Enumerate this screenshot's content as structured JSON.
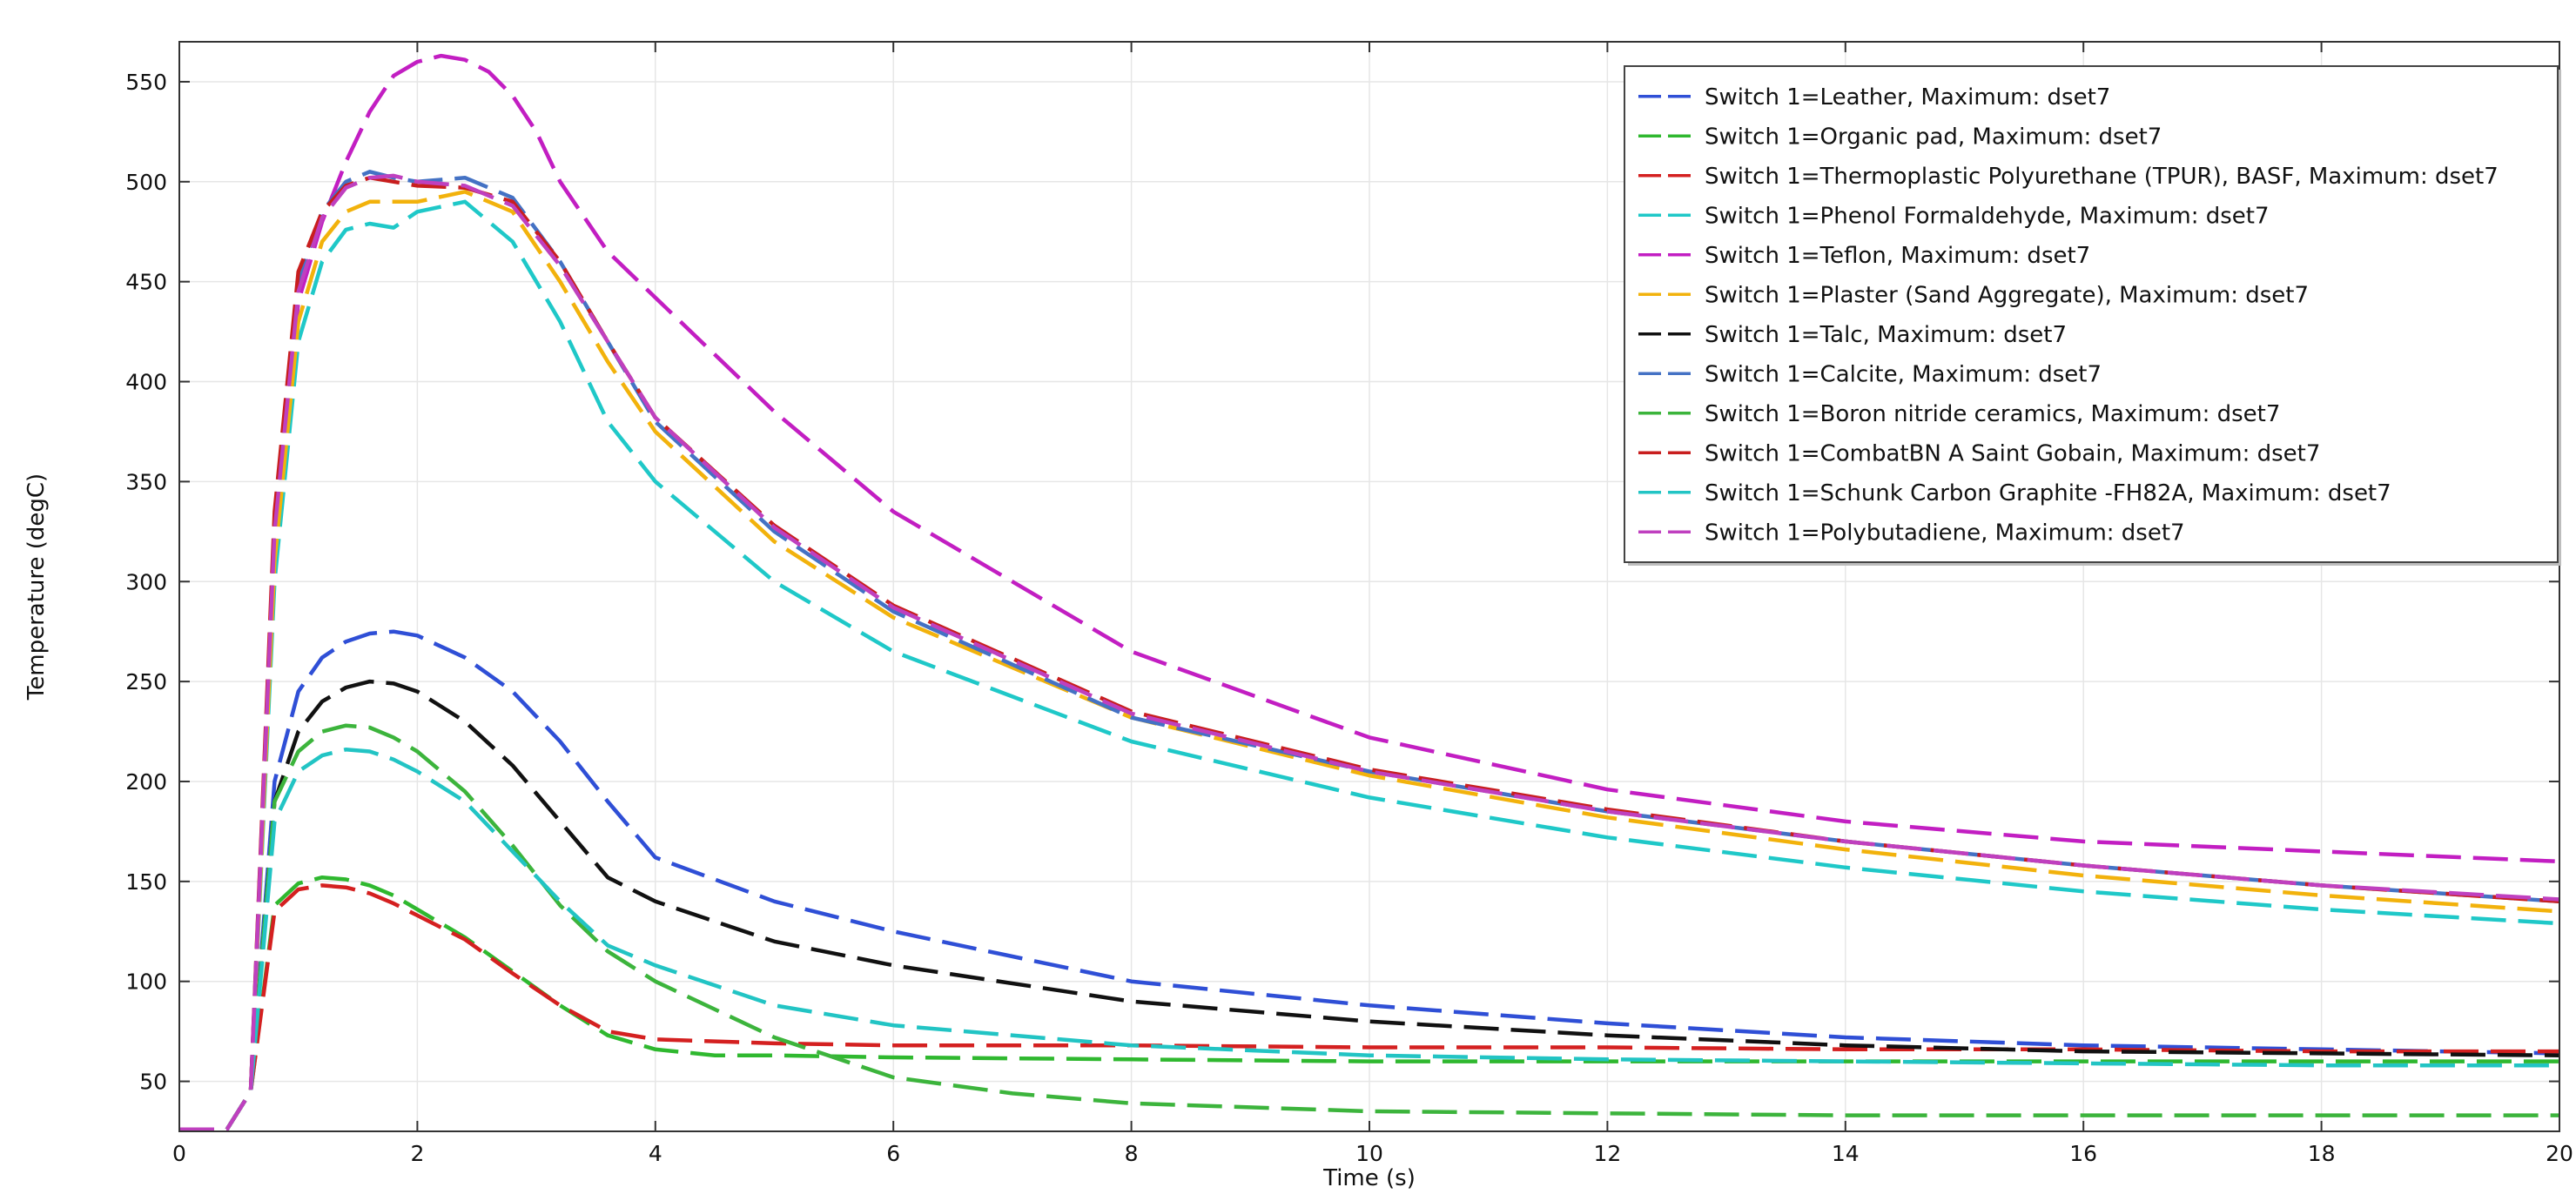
{
  "chart_data": {
    "type": "line",
    "title": "",
    "xlabel": "Time (s)",
    "ylabel": "Temperature (degC)",
    "xlim": [
      0,
      20
    ],
    "ylim": [
      25,
      570
    ],
    "x_ticks": [
      0,
      2,
      4,
      6,
      8,
      10,
      12,
      14,
      16,
      18,
      20
    ],
    "y_ticks": [
      50,
      100,
      150,
      200,
      250,
      300,
      350,
      400,
      450,
      500,
      550
    ],
    "grid": true,
    "line_style": "dashed",
    "legend_position": "top-right",
    "series": [
      {
        "name": "Switch 1=Leather, Maximum: dset7",
        "color": "#2f4fd6",
        "x": [
          0,
          0.4,
          0.6,
          0.8,
          1,
          1.2,
          1.4,
          1.6,
          1.8,
          2,
          2.4,
          2.8,
          3.2,
          3.6,
          4,
          5,
          6,
          8,
          10,
          12,
          14,
          16,
          18,
          20
        ],
        "y": [
          26,
          26,
          45,
          200,
          245,
          262,
          270,
          274,
          275,
          273,
          262,
          245,
          220,
          190,
          162,
          140,
          125,
          100,
          88,
          79,
          72,
          68,
          66,
          64
        ]
      },
      {
        "name": "Switch 1=Organic pad, Maximum: dset7",
        "color": "#2fb82f",
        "x": [
          0,
          0.4,
          0.6,
          0.8,
          1,
          1.2,
          1.4,
          1.6,
          1.8,
          2,
          2.4,
          2.8,
          3.2,
          3.6,
          4,
          4.5,
          5,
          6,
          8,
          10,
          12,
          14,
          16,
          18,
          20
        ],
        "y": [
          26,
          26,
          45,
          138,
          149,
          152,
          151,
          148,
          143,
          136,
          122,
          105,
          88,
          73,
          66,
          63,
          63,
          62,
          61,
          60,
          60,
          60,
          60,
          60,
          60
        ]
      },
      {
        "name": "Switch 1=Thermoplastic Polyurethane (TPUR), BASF, Maximum: dset7",
        "color": "#d42020",
        "x": [
          0,
          0.4,
          0.6,
          0.8,
          1,
          1.2,
          1.4,
          1.6,
          1.8,
          2,
          2.4,
          2.8,
          3.2,
          3.6,
          4,
          4.5,
          5,
          6,
          8,
          10,
          12,
          14,
          16,
          18,
          20
        ],
        "y": [
          26,
          26,
          45,
          135,
          146,
          148,
          147,
          144,
          139,
          133,
          121,
          104,
          88,
          75,
          71,
          70,
          69,
          68,
          68,
          67,
          67,
          66,
          66,
          65,
          65
        ]
      },
      {
        "name": "Switch 1=Phenol Formaldehyde, Maximum: dset7",
        "color": "#1fc8c8",
        "x": [
          0,
          0.4,
          0.6,
          0.8,
          1,
          1.2,
          1.4,
          1.6,
          1.8,
          2,
          2.4,
          2.8,
          3.2,
          3.6,
          4,
          5,
          6,
          8,
          10,
          12,
          14,
          16,
          18,
          20
        ],
        "y": [
          26,
          26,
          45,
          300,
          420,
          460,
          476,
          479,
          477,
          485,
          490,
          470,
          430,
          380,
          350,
          300,
          265,
          220,
          192,
          172,
          157,
          145,
          136,
          129
        ]
      },
      {
        "name": "Switch 1=Teflon, Maximum: dset7",
        "color": "#c21ec2",
        "x": [
          0,
          0.4,
          0.6,
          0.8,
          1,
          1.2,
          1.4,
          1.6,
          1.8,
          2,
          2.2,
          2.4,
          2.6,
          2.8,
          3,
          3.2,
          3.6,
          4,
          5,
          6,
          8,
          10,
          12,
          14,
          16,
          18,
          20
        ],
        "y": [
          26,
          26,
          45,
          320,
          440,
          480,
          510,
          535,
          553,
          560,
          563,
          561,
          555,
          543,
          525,
          500,
          465,
          442,
          385,
          335,
          265,
          222,
          196,
          180,
          170,
          165,
          160
        ]
      },
      {
        "name": "Switch 1=Plaster (Sand Aggregate), Maximum: dset7",
        "color": "#f2b20c",
        "x": [
          0,
          0.4,
          0.6,
          0.8,
          1,
          1.2,
          1.4,
          1.6,
          1.8,
          2,
          2.4,
          2.8,
          3.2,
          3.6,
          4,
          5,
          6,
          8,
          10,
          12,
          14,
          16,
          18,
          20
        ],
        "y": [
          26,
          26,
          45,
          310,
          430,
          470,
          485,
          490,
          490,
          490,
          495,
          485,
          450,
          410,
          375,
          320,
          282,
          232,
          203,
          182,
          166,
          153,
          143,
          135
        ]
      },
      {
        "name": "Switch 1=Talc, Maximum: dset7",
        "color": "#111111",
        "x": [
          0,
          0.4,
          0.6,
          0.8,
          1,
          1.2,
          1.4,
          1.6,
          1.8,
          2,
          2.4,
          2.8,
          3.2,
          3.6,
          4,
          5,
          6,
          8,
          10,
          12,
          14,
          16,
          18,
          20
        ],
        "y": [
          26,
          26,
          45,
          190,
          225,
          240,
          247,
          250,
          249,
          245,
          230,
          208,
          180,
          152,
          140,
          120,
          108,
          90,
          80,
          73,
          68,
          65,
          64,
          63
        ]
      },
      {
        "name": "Switch 1=Calcite, Maximum: dset7",
        "color": "#4472c4",
        "x": [
          0,
          0.4,
          0.6,
          0.8,
          1,
          1.2,
          1.4,
          1.6,
          1.8,
          2,
          2.4,
          2.8,
          3.2,
          3.6,
          4,
          5,
          6,
          8,
          10,
          12,
          14,
          16,
          18,
          20
        ],
        "y": [
          26,
          26,
          45,
          330,
          450,
          485,
          500,
          505,
          502,
          500,
          502,
          492,
          460,
          420,
          380,
          325,
          285,
          232,
          205,
          185,
          170,
          158,
          148,
          140
        ]
      },
      {
        "name": "Switch 1=Boron nitride ceramics, Maximum: dset7",
        "color": "#3cb43c",
        "x": [
          0,
          0.4,
          0.6,
          0.8,
          1,
          1.2,
          1.4,
          1.6,
          1.8,
          2,
          2.4,
          2.8,
          3.2,
          3.6,
          4,
          5,
          6,
          7,
          8,
          10,
          12,
          14,
          16,
          18,
          20
        ],
        "y": [
          26,
          26,
          45,
          190,
          215,
          225,
          228,
          227,
          222,
          215,
          195,
          168,
          138,
          115,
          100,
          72,
          52,
          44,
          39,
          35,
          34,
          33,
          33,
          33,
          33
        ]
      },
      {
        "name": "Switch 1=CombatBN A Saint Gobain, Maximum: dset7",
        "color": "#c81e1e",
        "x": [
          0,
          0.4,
          0.6,
          0.8,
          1,
          1.2,
          1.4,
          1.6,
          1.8,
          2,
          2.4,
          2.8,
          3.2,
          3.6,
          4,
          5,
          6,
          8,
          10,
          12,
          14,
          16,
          18,
          20
        ],
        "y": [
          26,
          26,
          45,
          335,
          455,
          485,
          498,
          502,
          500,
          498,
          497,
          490,
          460,
          420,
          382,
          328,
          288,
          235,
          206,
          186,
          170,
          158,
          148,
          140
        ]
      },
      {
        "name": "Switch 1=Schunk Carbon Graphite -FH82A, Maximum: dset7",
        "color": "#22c4c4",
        "x": [
          0,
          0.4,
          0.6,
          0.8,
          1,
          1.2,
          1.4,
          1.6,
          1.8,
          2,
          2.4,
          2.8,
          3.2,
          3.6,
          4,
          5,
          6,
          8,
          10,
          12,
          14,
          16,
          18,
          20
        ],
        "y": [
          26,
          26,
          45,
          180,
          205,
          213,
          216,
          215,
          211,
          205,
          190,
          165,
          140,
          118,
          108,
          88,
          78,
          68,
          63,
          61,
          60,
          59,
          58,
          58
        ]
      },
      {
        "name": "Switch 1=Polybutadiene, Maximum: dset7",
        "color": "#bf40bf",
        "x": [
          0,
          0.4,
          0.6,
          0.8,
          1,
          1.2,
          1.4,
          1.6,
          1.8,
          2,
          2.4,
          2.8,
          3.2,
          3.6,
          4,
          5,
          6,
          8,
          10,
          12,
          14,
          16,
          18,
          20
        ],
        "y": [
          26,
          26,
          45,
          325,
          445,
          482,
          497,
          502,
          503,
          500,
          498,
          488,
          458,
          420,
          382,
          327,
          287,
          234,
          205,
          185,
          170,
          158,
          148,
          141
        ]
      }
    ]
  }
}
